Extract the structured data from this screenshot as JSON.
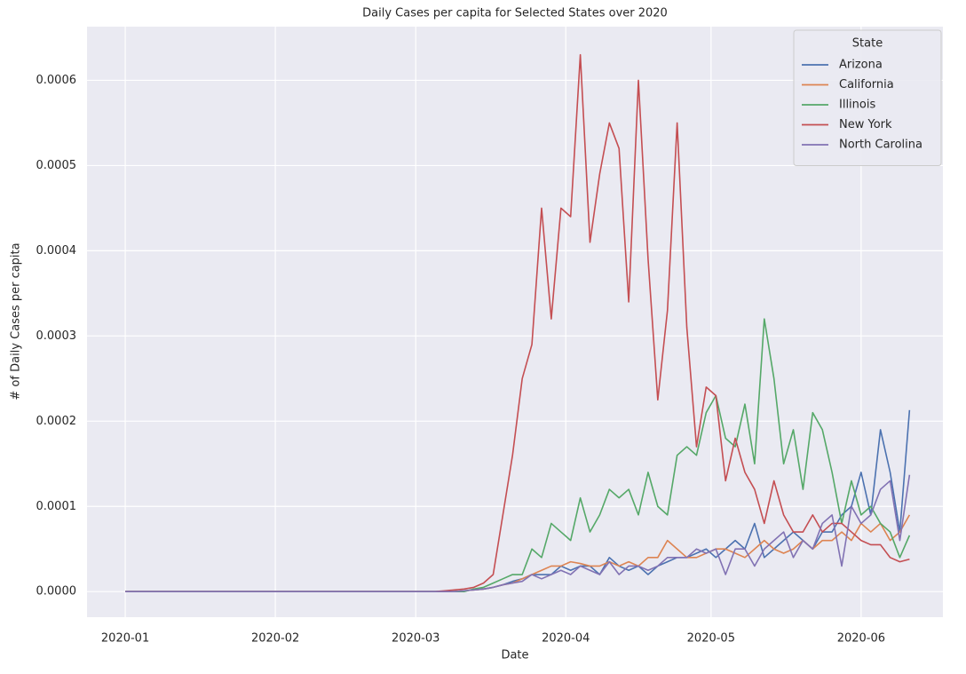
{
  "chart_data": {
    "type": "line",
    "title": "Daily Cases per capita for Selected States over 2020",
    "x_label": "Date",
    "y_label": "# of Daily Cases per capita",
    "legend_title": "State",
    "legend_position": "upper right",
    "grid": true,
    "xlim": [
      -7.9,
      168.9
    ],
    "xticks": [
      {
        "value": 0,
        "label": "2020-01"
      },
      {
        "value": 31,
        "label": "2020-02"
      },
      {
        "value": 60,
        "label": "2020-03"
      },
      {
        "value": 91,
        "label": "2020-04"
      },
      {
        "value": 121,
        "label": "2020-05"
      },
      {
        "value": 152,
        "label": "2020-06"
      }
    ],
    "ylim": [
      -3e-05,
      0.000663
    ],
    "yticks": [
      {
        "value": 0,
        "label": "0.0000"
      },
      0.0001,
      0.0002,
      0.0003,
      0.0004,
      0.0005,
      0.0006
    ],
    "x": [
      0,
      60,
      62,
      64,
      66,
      68,
      70,
      72,
      74,
      76,
      78,
      80,
      82,
      84,
      86,
      88,
      90,
      92,
      94,
      96,
      98,
      100,
      102,
      104,
      106,
      108,
      110,
      112,
      114,
      116,
      118,
      120,
      122,
      124,
      126,
      128,
      130,
      132,
      134,
      136,
      138,
      140,
      142,
      144,
      146,
      148,
      150,
      152,
      154,
      156,
      158,
      160,
      162
    ],
    "series": [
      {
        "name": "Arizona",
        "color": "#4c72b0",
        "values": [
          0,
          0,
          0,
          0,
          0,
          0,
          1e-06,
          2e-06,
          3e-06,
          5e-06,
          8e-06,
          1.2e-05,
          1.5e-05,
          2e-05,
          2e-05,
          2e-05,
          3e-05,
          2.5e-05,
          3e-05,
          3e-05,
          2e-05,
          4e-05,
          3e-05,
          2.5e-05,
          3e-05,
          2e-05,
          3e-05,
          3.5e-05,
          4e-05,
          4e-05,
          4.5e-05,
          5e-05,
          4e-05,
          5e-05,
          6e-05,
          5e-05,
          8e-05,
          4e-05,
          5e-05,
          6e-05,
          7e-05,
          6e-05,
          5e-05,
          7e-05,
          7e-05,
          9e-05,
          0.0001,
          0.00014,
          9e-05,
          0.00019,
          0.00014,
          7e-05,
          0.000213
        ]
      },
      {
        "name": "California",
        "color": "#dd8452",
        "values": [
          0,
          0,
          0,
          0,
          0,
          0,
          1e-06,
          2e-06,
          3e-06,
          5e-06,
          8e-06,
          1e-05,
          1.5e-05,
          2e-05,
          2.5e-05,
          3e-05,
          3e-05,
          3.5e-05,
          3.3e-05,
          3e-05,
          3e-05,
          3.5e-05,
          3e-05,
          3.5e-05,
          3e-05,
          4e-05,
          4e-05,
          6e-05,
          5e-05,
          4e-05,
          4e-05,
          4.5e-05,
          5e-05,
          5e-05,
          4.5e-05,
          4e-05,
          5e-05,
          6e-05,
          5e-05,
          4.5e-05,
          5e-05,
          6e-05,
          5e-05,
          6e-05,
          6e-05,
          7e-05,
          6e-05,
          8e-05,
          7e-05,
          8e-05,
          6e-05,
          7e-05,
          9e-05
        ]
      },
      {
        "name": "Illinois",
        "color": "#55a868",
        "values": [
          0,
          0,
          0,
          0,
          0,
          0,
          0,
          3e-06,
          5e-06,
          1e-05,
          1.5e-05,
          2e-05,
          2e-05,
          5e-05,
          4e-05,
          8e-05,
          7e-05,
          6e-05,
          0.00011,
          7e-05,
          9e-05,
          0.00012,
          0.00011,
          0.00012,
          9e-05,
          0.00014,
          0.0001,
          9e-05,
          0.00016,
          0.00017,
          0.00016,
          0.00021,
          0.00023,
          0.00018,
          0.00017,
          0.00022,
          0.00015,
          0.00032,
          0.00025,
          0.00015,
          0.00019,
          0.00012,
          0.00021,
          0.00019,
          0.00014,
          8e-05,
          0.00013,
          9e-05,
          0.0001,
          8e-05,
          7e-05,
          4e-05,
          6.6e-05
        ]
      },
      {
        "name": "New York",
        "color": "#c44e52",
        "values": [
          0,
          0,
          0,
          0,
          1e-06,
          2e-06,
          3e-06,
          5e-06,
          1e-05,
          2e-05,
          9e-05,
          0.00016,
          0.00025,
          0.00029,
          0.00045,
          0.00032,
          0.00045,
          0.00044,
          0.00063,
          0.00041,
          0.00049,
          0.00055,
          0.00052,
          0.00034,
          0.0006,
          0.00039,
          0.000225,
          0.00033,
          0.00055,
          0.00031,
          0.00017,
          0.00024,
          0.00023,
          0.00013,
          0.00018,
          0.00014,
          0.00012,
          8e-05,
          0.00013,
          9e-05,
          7e-05,
          7e-05,
          9e-05,
          7e-05,
          8e-05,
          8e-05,
          7e-05,
          6e-05,
          5.5e-05,
          5.5e-05,
          4e-05,
          3.5e-05,
          3.8e-05
        ]
      },
      {
        "name": "North Carolina",
        "color": "#8172b3",
        "values": [
          0,
          0,
          0,
          0,
          0,
          0,
          1e-06,
          2e-06,
          3e-06,
          5e-06,
          8e-06,
          1e-05,
          1.2e-05,
          2e-05,
          1.5e-05,
          2e-05,
          2.5e-05,
          2e-05,
          3e-05,
          2.5e-05,
          2e-05,
          3.5e-05,
          2e-05,
          3e-05,
          3e-05,
          2.5e-05,
          3e-05,
          4e-05,
          4e-05,
          4e-05,
          5e-05,
          4.5e-05,
          5e-05,
          2e-05,
          5e-05,
          5e-05,
          3e-05,
          5e-05,
          6e-05,
          7e-05,
          4e-05,
          6e-05,
          5e-05,
          8e-05,
          9e-05,
          3e-05,
          0.0001,
          8e-05,
          9e-05,
          0.00012,
          0.00013,
          6e-05,
          0.000137
        ]
      }
    ]
  }
}
